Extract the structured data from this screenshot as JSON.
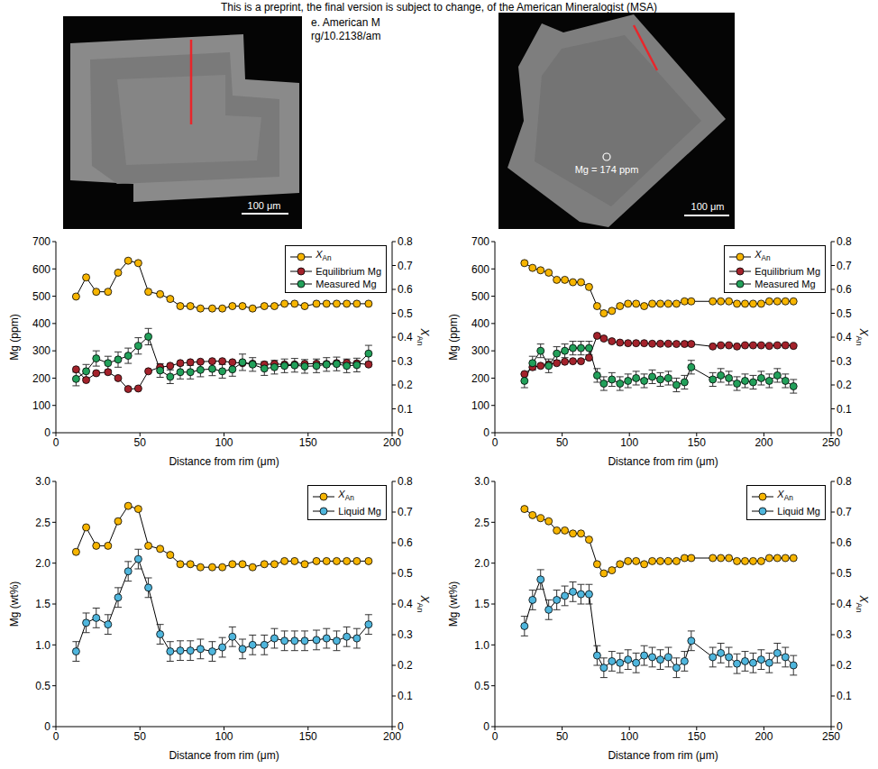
{
  "header": {
    "text": "This is a preprint, the final version is subject to change, of the American Mineralogist (MSA)",
    "fragments": [
      "e. American M",
      "rg/10.2138/am"
    ]
  },
  "images": [
    {
      "scale_bar": "100 μm"
    },
    {
      "scale_bar": "100 μm",
      "annotation": "Mg = 174 ppm"
    }
  ],
  "chart_data": [
    {
      "type": "line",
      "x_label": "Distance from rim (μm)",
      "y_label": "Mg (ppm)",
      "y2_label": "XAn",
      "legend": "upper right",
      "x": [
        12,
        18,
        24,
        31,
        37,
        43,
        49,
        55,
        62,
        68,
        74,
        80,
        86,
        93,
        99,
        105,
        111,
        117,
        124,
        130,
        136,
        142,
        148,
        155,
        161,
        167,
        173,
        179,
        186
      ],
      "xlim": [
        0,
        200
      ],
      "xticks": [
        0,
        50,
        100,
        150,
        200
      ],
      "ylim": [
        0,
        700
      ],
      "yticks": [
        0,
        100,
        200,
        300,
        400,
        500,
        600,
        700
      ],
      "y2lim": [
        0,
        0.8
      ],
      "y2ticks": [
        0,
        0.1,
        0.2,
        0.3,
        0.4,
        0.5,
        0.6,
        0.7,
        0.8
      ],
      "series": [
        {
          "name": "XAn",
          "axis": "y2",
          "color": "#f7b500",
          "marker": "circle",
          "values": [
            0.57,
            0.65,
            0.59,
            0.59,
            0.67,
            0.72,
            0.71,
            0.59,
            0.58,
            0.56,
            0.53,
            0.53,
            0.52,
            0.52,
            0.52,
            0.53,
            0.53,
            0.52,
            0.53,
            0.53,
            0.54,
            0.54,
            0.53,
            0.54,
            0.54,
            0.54,
            0.54,
            0.54,
            0.54
          ]
        },
        {
          "name": "Equilibrium Mg",
          "color": "#a3222b",
          "marker": "circle",
          "values": [
            232,
            193,
            218,
            222,
            200,
            160,
            162,
            225,
            240,
            245,
            255,
            258,
            260,
            262,
            262,
            258,
            255,
            253,
            250,
            252,
            250,
            250,
            252,
            253,
            252,
            255,
            256,
            254,
            250
          ]
        },
        {
          "name": "Measured Mg",
          "color": "#22a05a",
          "marker": "circle",
          "values": [
            197,
            225,
            272,
            255,
            268,
            282,
            318,
            352,
            228,
            205,
            222,
            222,
            230,
            234,
            225,
            232,
            258,
            250,
            235,
            240,
            245,
            247,
            243,
            245,
            250,
            252,
            245,
            248,
            290
          ],
          "errors": [
            25,
            25,
            28,
            25,
            28,
            28,
            30,
            30,
            25,
            25,
            25,
            25,
            25,
            25,
            25,
            25,
            30,
            25,
            25,
            25,
            25,
            25,
            25,
            25,
            25,
            25,
            25,
            25,
            30
          ]
        }
      ]
    },
    {
      "type": "line",
      "x_label": "Distance from rim (μm)",
      "y_label": "Mg (ppm)",
      "y2_label": "XAn",
      "legend": "upper right",
      "x": [
        22,
        28,
        34,
        40,
        46,
        52,
        58,
        64,
        70,
        76,
        81,
        87,
        93,
        99,
        105,
        111,
        117,
        123,
        129,
        135,
        141,
        146,
        162,
        168,
        174,
        180,
        186,
        192,
        198,
        204,
        210,
        216,
        222
      ],
      "xlim": [
        0,
        250
      ],
      "xticks": [
        0,
        50,
        100,
        150,
        200,
        250
      ],
      "ylim": [
        0,
        700
      ],
      "yticks": [
        0,
        100,
        200,
        300,
        400,
        500,
        600,
        700
      ],
      "y2lim": [
        0,
        0.8
      ],
      "y2ticks": [
        0,
        0.1,
        0.2,
        0.3,
        0.4,
        0.5,
        0.6,
        0.7,
        0.8
      ],
      "series": [
        {
          "name": "XAn",
          "axis": "y2",
          "color": "#f7b500",
          "marker": "circle",
          "values": [
            0.71,
            0.69,
            0.68,
            0.67,
            0.64,
            0.64,
            0.63,
            0.63,
            0.61,
            0.53,
            0.5,
            0.51,
            0.53,
            0.54,
            0.54,
            0.53,
            0.54,
            0.54,
            0.54,
            0.54,
            0.55,
            0.55,
            0.55,
            0.55,
            0.55,
            0.54,
            0.54,
            0.54,
            0.54,
            0.55,
            0.55,
            0.55,
            0.55
          ]
        },
        {
          "name": "Equilibrium Mg",
          "color": "#a3222b",
          "marker": "circle",
          "values": [
            215,
            240,
            245,
            250,
            255,
            260,
            262,
            262,
            275,
            355,
            345,
            335,
            330,
            328,
            328,
            328,
            326,
            326,
            326,
            325,
            325,
            325,
            316,
            320,
            320,
            316,
            320,
            320,
            320,
            318,
            320,
            320,
            318
          ]
        },
        {
          "name": "Measured Mg",
          "color": "#22a05a",
          "marker": "circle",
          "values": [
            190,
            255,
            300,
            245,
            290,
            300,
            310,
            310,
            310,
            210,
            180,
            195,
            180,
            190,
            200,
            190,
            205,
            195,
            200,
            175,
            185,
            240,
            195,
            210,
            200,
            180,
            190,
            185,
            200,
            190,
            210,
            190,
            170
          ],
          "errors": [
            25,
            25,
            25,
            25,
            25,
            25,
            25,
            25,
            25,
            25,
            25,
            25,
            25,
            25,
            25,
            25,
            25,
            25,
            25,
            25,
            25,
            25,
            25,
            25,
            25,
            25,
            25,
            25,
            25,
            25,
            25,
            25,
            25
          ]
        }
      ]
    },
    {
      "type": "line",
      "x_label": "Distance from rim (μm)",
      "y_label": "Mg (wt%)",
      "y2_label": "XAn",
      "legend": "upper right",
      "x": [
        12,
        18,
        24,
        31,
        37,
        43,
        49,
        55,
        62,
        68,
        74,
        80,
        86,
        93,
        99,
        105,
        111,
        117,
        124,
        130,
        136,
        142,
        148,
        155,
        161,
        167,
        173,
        179,
        186
      ],
      "xlim": [
        0,
        200
      ],
      "xticks": [
        0,
        50,
        100,
        150,
        200
      ],
      "ylim": [
        0,
        3
      ],
      "yticks": [
        0,
        0.5,
        {
          "value": 1,
          "label": "1.0"
        },
        1.5,
        {
          "value": 2,
          "label": "2.0"
        },
        2.5,
        {
          "value": 3,
          "label": "3.0"
        }
      ],
      "y2lim": [
        0,
        0.8
      ],
      "y2ticks": [
        0,
        0.1,
        0.2,
        0.3,
        0.4,
        0.5,
        0.6,
        0.7,
        0.8
      ],
      "series": [
        {
          "name": "XAn",
          "axis": "y2",
          "color": "#f7b500",
          "marker": "circle",
          "values": [
            0.57,
            0.65,
            0.59,
            0.59,
            0.67,
            0.72,
            0.71,
            0.59,
            0.58,
            0.56,
            0.53,
            0.53,
            0.52,
            0.52,
            0.52,
            0.53,
            0.53,
            0.52,
            0.53,
            0.53,
            0.54,
            0.54,
            0.53,
            0.54,
            0.54,
            0.54,
            0.54,
            0.54,
            0.54
          ]
        },
        {
          "name": "Liquid Mg",
          "color": "#4fb6dd",
          "marker": "circle",
          "values": [
            0.92,
            1.27,
            1.33,
            1.25,
            1.58,
            1.9,
            2.05,
            1.7,
            1.13,
            0.92,
            0.93,
            0.93,
            0.95,
            0.92,
            0.97,
            1.1,
            0.95,
            1.0,
            1.0,
            1.08,
            1.05,
            1.05,
            1.05,
            1.06,
            1.08,
            1.05,
            1.1,
            1.08,
            1.25
          ],
          "errors": [
            0.12,
            0.12,
            0.12,
            0.12,
            0.12,
            0.12,
            0.12,
            0.12,
            0.12,
            0.12,
            0.12,
            0.12,
            0.12,
            0.12,
            0.12,
            0.12,
            0.12,
            0.12,
            0.12,
            0.12,
            0.12,
            0.12,
            0.12,
            0.12,
            0.12,
            0.12,
            0.12,
            0.12,
            0.12
          ]
        }
      ]
    },
    {
      "type": "line",
      "x_label": "Distance from rim (μm)",
      "y_label": "Mg (wt%)",
      "y2_label": "XAn",
      "legend": "upper right",
      "x": [
        22,
        28,
        34,
        40,
        46,
        52,
        58,
        64,
        70,
        76,
        81,
        87,
        93,
        99,
        105,
        111,
        117,
        123,
        129,
        135,
        141,
        146,
        162,
        168,
        174,
        180,
        186,
        192,
        198,
        204,
        210,
        216,
        222
      ],
      "xlim": [
        0,
        250
      ],
      "xticks": [
        0,
        50,
        100,
        150,
        200,
        250
      ],
      "ylim": [
        0,
        3
      ],
      "yticks": [
        0,
        0.5,
        {
          "value": 1,
          "label": "1.0"
        },
        1.5,
        {
          "value": 2,
          "label": "2.0"
        },
        2.5,
        {
          "value": 3,
          "label": "3.0"
        }
      ],
      "y2lim": [
        0,
        0.8
      ],
      "y2ticks": [
        0,
        0.1,
        0.2,
        0.3,
        0.4,
        0.5,
        0.6,
        0.7,
        0.8
      ],
      "series": [
        {
          "name": "XAn",
          "axis": "y2",
          "color": "#f7b500",
          "marker": "circle",
          "values": [
            0.71,
            0.69,
            0.68,
            0.67,
            0.64,
            0.64,
            0.63,
            0.63,
            0.61,
            0.53,
            0.5,
            0.51,
            0.53,
            0.54,
            0.54,
            0.53,
            0.54,
            0.54,
            0.54,
            0.54,
            0.55,
            0.55,
            0.55,
            0.55,
            0.55,
            0.54,
            0.54,
            0.54,
            0.54,
            0.55,
            0.55,
            0.55,
            0.55
          ]
        },
        {
          "name": "Liquid Mg",
          "color": "#4fb6dd",
          "marker": "circle",
          "values": [
            1.23,
            1.55,
            1.8,
            1.43,
            1.55,
            1.6,
            1.65,
            1.62,
            1.62,
            0.87,
            0.72,
            0.8,
            0.78,
            0.82,
            0.78,
            0.87,
            0.85,
            0.82,
            0.85,
            0.72,
            0.8,
            1.05,
            0.85,
            0.9,
            0.85,
            0.77,
            0.8,
            0.78,
            0.82,
            0.78,
            0.9,
            0.85,
            0.75
          ],
          "errors": [
            0.12,
            0.12,
            0.12,
            0.12,
            0.12,
            0.12,
            0.12,
            0.12,
            0.12,
            0.12,
            0.12,
            0.12,
            0.12,
            0.12,
            0.12,
            0.12,
            0.12,
            0.12,
            0.12,
            0.12,
            0.12,
            0.12,
            0.12,
            0.12,
            0.12,
            0.12,
            0.12,
            0.12,
            0.12,
            0.12,
            0.12,
            0.12,
            0.12
          ]
        }
      ]
    }
  ]
}
